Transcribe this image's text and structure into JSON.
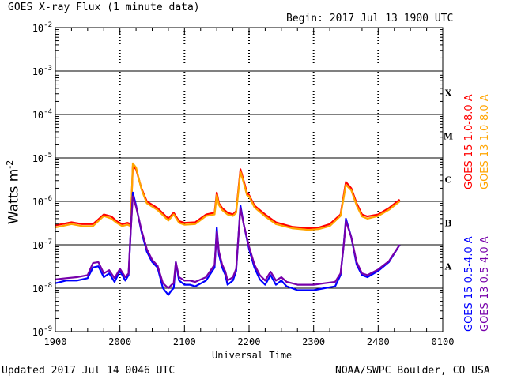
{
  "header": {
    "title": "GOES X-ray Flux (1 minute data)",
    "begin": "Begin: 2017 Jul 13 1900 UTC"
  },
  "footer": {
    "updated": "Updated 2017 Jul 14 0046 UTC",
    "credit": "NOAA/SWPC Boulder, CO USA"
  },
  "chart_data": {
    "type": "line",
    "title": "GOES X-ray Flux (1 minute data)",
    "xlabel": "Universal Time",
    "ylabel": "Watts m",
    "ylabel_sup": "-2",
    "x_ticks": [
      "1900",
      "2000",
      "2100",
      "2200",
      "2300",
      "2400",
      "0100"
    ],
    "x_range_minutes": [
      0,
      360
    ],
    "y_scale": "log",
    "ylim": [
      1e-09,
      0.01
    ],
    "y_ticks": [
      {
        "base": "10",
        "exp": "-2"
      },
      {
        "base": "10",
        "exp": "-3"
      },
      {
        "base": "10",
        "exp": "-4"
      },
      {
        "base": "10",
        "exp": "-5"
      },
      {
        "base": "10",
        "exp": "-6"
      },
      {
        "base": "10",
        "exp": "-7"
      },
      {
        "base": "10",
        "exp": "-8"
      },
      {
        "base": "10",
        "exp": "-9"
      }
    ],
    "flare_classes": [
      "X",
      "M",
      "C",
      "B",
      "A"
    ],
    "grid": true,
    "series": [
      {
        "name": "GOES 15 1.0-8.0 A",
        "color": "#ff0000",
        "x": [
          0,
          15,
          25,
          35,
          45,
          52,
          57,
          62,
          67,
          70,
          72,
          75,
          80,
          85,
          95,
          105,
          110,
          115,
          120,
          130,
          140,
          148,
          150,
          152,
          155,
          160,
          165,
          168,
          172,
          175,
          178,
          180,
          185,
          195,
          205,
          220,
          235,
          245,
          255,
          265,
          270,
          275,
          280,
          285,
          290,
          300,
          310,
          320
        ],
        "y": [
          2.8e-07,
          3.3e-07,
          3e-07,
          3e-07,
          5e-07,
          4.5e-07,
          3.5e-07,
          3e-07,
          3.2e-07,
          3e-07,
          6.5e-06,
          5.5e-06,
          2e-06,
          1e-06,
          7e-07,
          4e-07,
          5.5e-07,
          3.5e-07,
          3.2e-07,
          3.3e-07,
          5e-07,
          5.5e-07,
          1.6e-06,
          9e-07,
          7e-07,
          5.5e-07,
          5e-07,
          6e-07,
          5.5e-06,
          3e-06,
          1.6e-06,
          1.4e-06,
          8e-07,
          5e-07,
          3.3e-07,
          2.6e-07,
          2.4e-07,
          2.5e-07,
          3e-07,
          5e-07,
          2.8e-06,
          2e-06,
          9e-07,
          5e-07,
          4.5e-07,
          5e-07,
          7e-07,
          1.1e-06
        ]
      },
      {
        "name": "GOES 13 1.0-8.0 A",
        "color": "#ffa500",
        "x": [
          0,
          15,
          25,
          35,
          45,
          52,
          57,
          62,
          67,
          70,
          72,
          75,
          80,
          85,
          95,
          105,
          110,
          115,
          120,
          130,
          140,
          148,
          150,
          152,
          155,
          160,
          165,
          168,
          172,
          175,
          178,
          180,
          185,
          195,
          205,
          220,
          235,
          245,
          255,
          265,
          270,
          275,
          280,
          285,
          290,
          300,
          310,
          320
        ],
        "y": [
          2.5e-07,
          3e-07,
          2.7e-07,
          2.7e-07,
          4.6e-07,
          4e-07,
          3.2e-07,
          2.7e-07,
          2.9e-07,
          2.7e-07,
          7.5e-06,
          6e-06,
          1.9e-06,
          9e-07,
          6.3e-07,
          3.6e-07,
          5e-07,
          3.2e-07,
          2.9e-07,
          3e-07,
          4.6e-07,
          5e-07,
          1.4e-06,
          8.2e-07,
          6.3e-07,
          5e-07,
          4.6e-07,
          5.5e-07,
          4.8e-06,
          2.7e-06,
          1.4e-06,
          1.3e-06,
          7.3e-07,
          4.5e-07,
          3e-07,
          2.4e-07,
          2.2e-07,
          2.3e-07,
          2.7e-07,
          4.6e-07,
          2.4e-06,
          1.8e-06,
          8e-07,
          4.5e-07,
          4e-07,
          4.6e-07,
          6.4e-07,
          1e-06
        ]
      },
      {
        "name": "GOES 15 0.5-4.0 A",
        "color": "#0000ff",
        "x": [
          0,
          10,
          20,
          30,
          35,
          40,
          45,
          50,
          55,
          60,
          65,
          68,
          70,
          72,
          75,
          80,
          85,
          90,
          95,
          100,
          105,
          108,
          110,
          112,
          115,
          120,
          125,
          130,
          140,
          148,
          150,
          152,
          155,
          158,
          160,
          165,
          168,
          172,
          175,
          180,
          185,
          190,
          195,
          200,
          205,
          210,
          215,
          220,
          225,
          230,
          240,
          250,
          260,
          265,
          268,
          270,
          275,
          280,
          285,
          290,
          300,
          310,
          320
        ],
        "y": [
          1.3e-08,
          1.5e-08,
          1.5e-08,
          1.7e-08,
          3e-08,
          3.2e-08,
          1.8e-08,
          2.2e-08,
          1.4e-08,
          2.5e-08,
          1.5e-08,
          2e-08,
          2e-07,
          1.6e-06,
          8e-07,
          2e-07,
          7e-08,
          4e-08,
          3e-08,
          1e-08,
          7e-09,
          9e-09,
          1e-08,
          4e-08,
          1.5e-08,
          1.2e-08,
          1.2e-08,
          1.1e-08,
          1.5e-08,
          3e-08,
          2.5e-07,
          6e-08,
          3e-08,
          2e-08,
          1.2e-08,
          1.5e-08,
          2.5e-08,
          8e-07,
          3e-07,
          8e-08,
          3e-08,
          1.6e-08,
          1.2e-08,
          2e-08,
          1.2e-08,
          1.5e-08,
          1.1e-08,
          1e-08,
          9e-09,
          9e-09,
          9e-09,
          1e-08,
          1.1e-08,
          2e-08,
          1e-07,
          4e-07,
          1.5e-07,
          3.5e-08,
          2e-08,
          1.8e-08,
          2.5e-08,
          4e-08,
          1e-07
        ]
      },
      {
        "name": "GOES 13 0.5-4.0 A",
        "color": "#7700aa",
        "x": [
          0,
          10,
          20,
          30,
          35,
          40,
          45,
          50,
          55,
          60,
          65,
          68,
          70,
          72,
          75,
          80,
          85,
          90,
          95,
          100,
          105,
          108,
          110,
          112,
          115,
          120,
          125,
          130,
          140,
          148,
          150,
          152,
          155,
          158,
          160,
          165,
          168,
          172,
          175,
          180,
          185,
          190,
          195,
          200,
          205,
          210,
          215,
          220,
          225,
          230,
          240,
          250,
          260,
          265,
          268,
          270,
          275,
          280,
          285,
          290,
          300,
          310,
          320
        ],
        "y": [
          1.6e-08,
          1.7e-08,
          1.8e-08,
          2e-08,
          3.8e-08,
          4e-08,
          2.2e-08,
          2.6e-08,
          1.7e-08,
          2.8e-08,
          1.8e-08,
          2.2e-08,
          2e-07,
          1.3e-06,
          7.5e-07,
          2.2e-07,
          8e-08,
          4.5e-08,
          3.3e-08,
          1.3e-08,
          1e-08,
          1.2e-08,
          1.3e-08,
          4e-08,
          1.8e-08,
          1.5e-08,
          1.5e-08,
          1.4e-08,
          1.8e-08,
          3.5e-08,
          2e-07,
          7e-08,
          3.5e-08,
          2.4e-08,
          1.5e-08,
          1.8e-08,
          2.8e-08,
          7e-07,
          3e-07,
          9e-08,
          3.5e-08,
          2e-08,
          1.5e-08,
          2.4e-08,
          1.5e-08,
          1.8e-08,
          1.4e-08,
          1.3e-08,
          1.2e-08,
          1.2e-08,
          1.2e-08,
          1.3e-08,
          1.4e-08,
          2.2e-08,
          1e-07,
          3.5e-07,
          1.5e-07,
          4e-08,
          2.2e-08,
          2e-08,
          2.7e-08,
          4.2e-08,
          1e-07
        ]
      }
    ]
  }
}
